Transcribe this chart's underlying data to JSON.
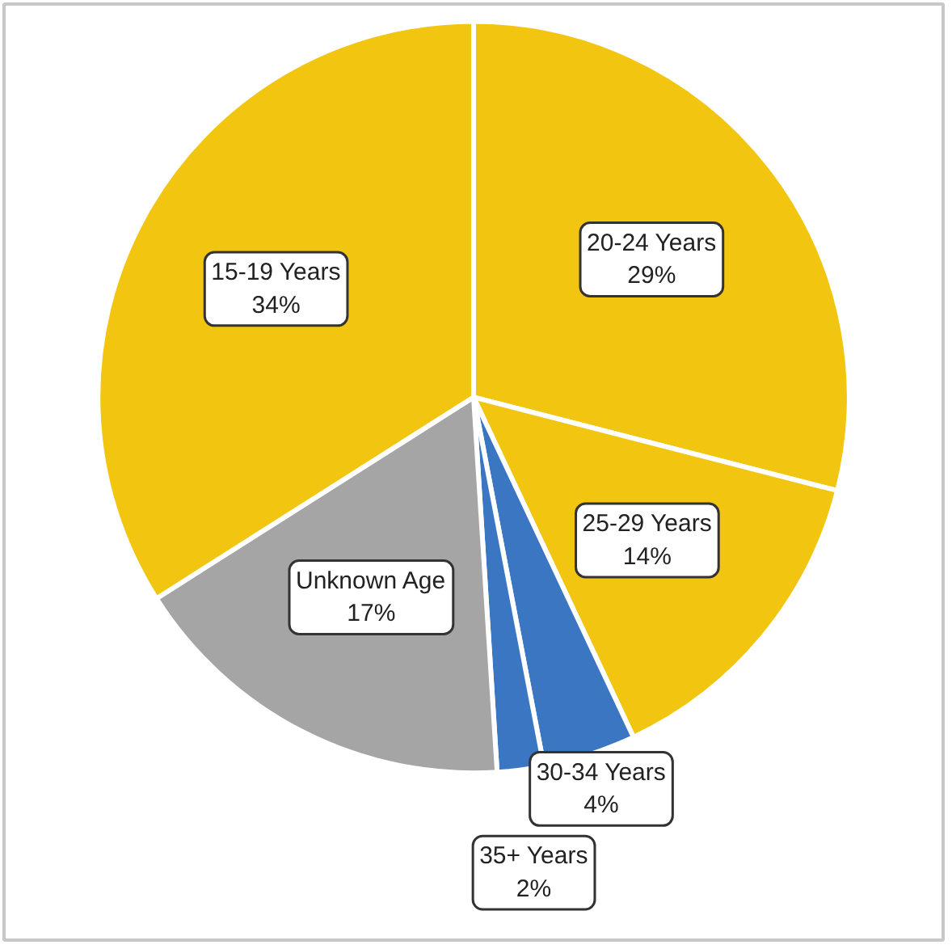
{
  "chart_data": {
    "type": "pie",
    "categories": [
      "20-24 Years",
      "25-29 Years",
      "30-34 Years",
      "35+ Years",
      "Unknown Age",
      "15-19 Years"
    ],
    "values": [
      29,
      14,
      4,
      2,
      17,
      34
    ],
    "value_labels": [
      "29%",
      "14%",
      "4%",
      "2%",
      "17%",
      "34%"
    ],
    "colors": [
      "#f2c511",
      "#f2c511",
      "#3a76c2",
      "#3a76c2",
      "#a5a5a5",
      "#f2c511"
    ]
  }
}
